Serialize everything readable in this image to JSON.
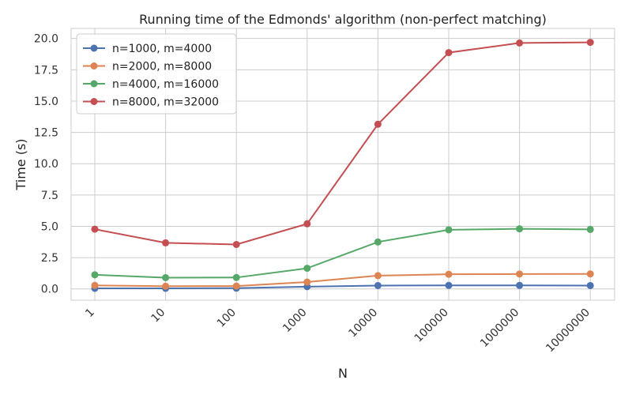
{
  "chart_data": {
    "type": "line",
    "title": "Running time of the Edmonds' algorithm (non-perfect matching)",
    "xlabel": "N",
    "ylabel": "Time (s)",
    "categories": [
      "1",
      "10",
      "100",
      "1000",
      "10000",
      "100000",
      "1000000",
      "10000000"
    ],
    "ylim": [
      -0.9,
      20.8
    ],
    "yticks": [
      "0.0",
      "2.5",
      "5.0",
      "7.5",
      "10.0",
      "12.5",
      "15.0",
      "17.5",
      "20.0"
    ],
    "grid": true,
    "legend_position": "top-left",
    "series": [
      {
        "name": "n=1000, m=4000",
        "color": "#4c72b0",
        "values": [
          0.05,
          0.05,
          0.06,
          0.18,
          0.27,
          0.28,
          0.28,
          0.27
        ]
      },
      {
        "name": "n=2000, m=8000",
        "color": "#dd8452",
        "values": [
          0.28,
          0.22,
          0.23,
          0.55,
          1.06,
          1.17,
          1.19,
          1.2
        ]
      },
      {
        "name": "n=4000, m=16000",
        "color": "#55a868",
        "values": [
          1.13,
          0.9,
          0.91,
          1.65,
          3.75,
          4.72,
          4.8,
          4.75
        ]
      },
      {
        "name": "n=8000, m=32000",
        "color": "#c44e52",
        "values": [
          4.77,
          3.68,
          3.55,
          5.2,
          13.15,
          18.87,
          19.64,
          19.69
        ]
      }
    ]
  }
}
